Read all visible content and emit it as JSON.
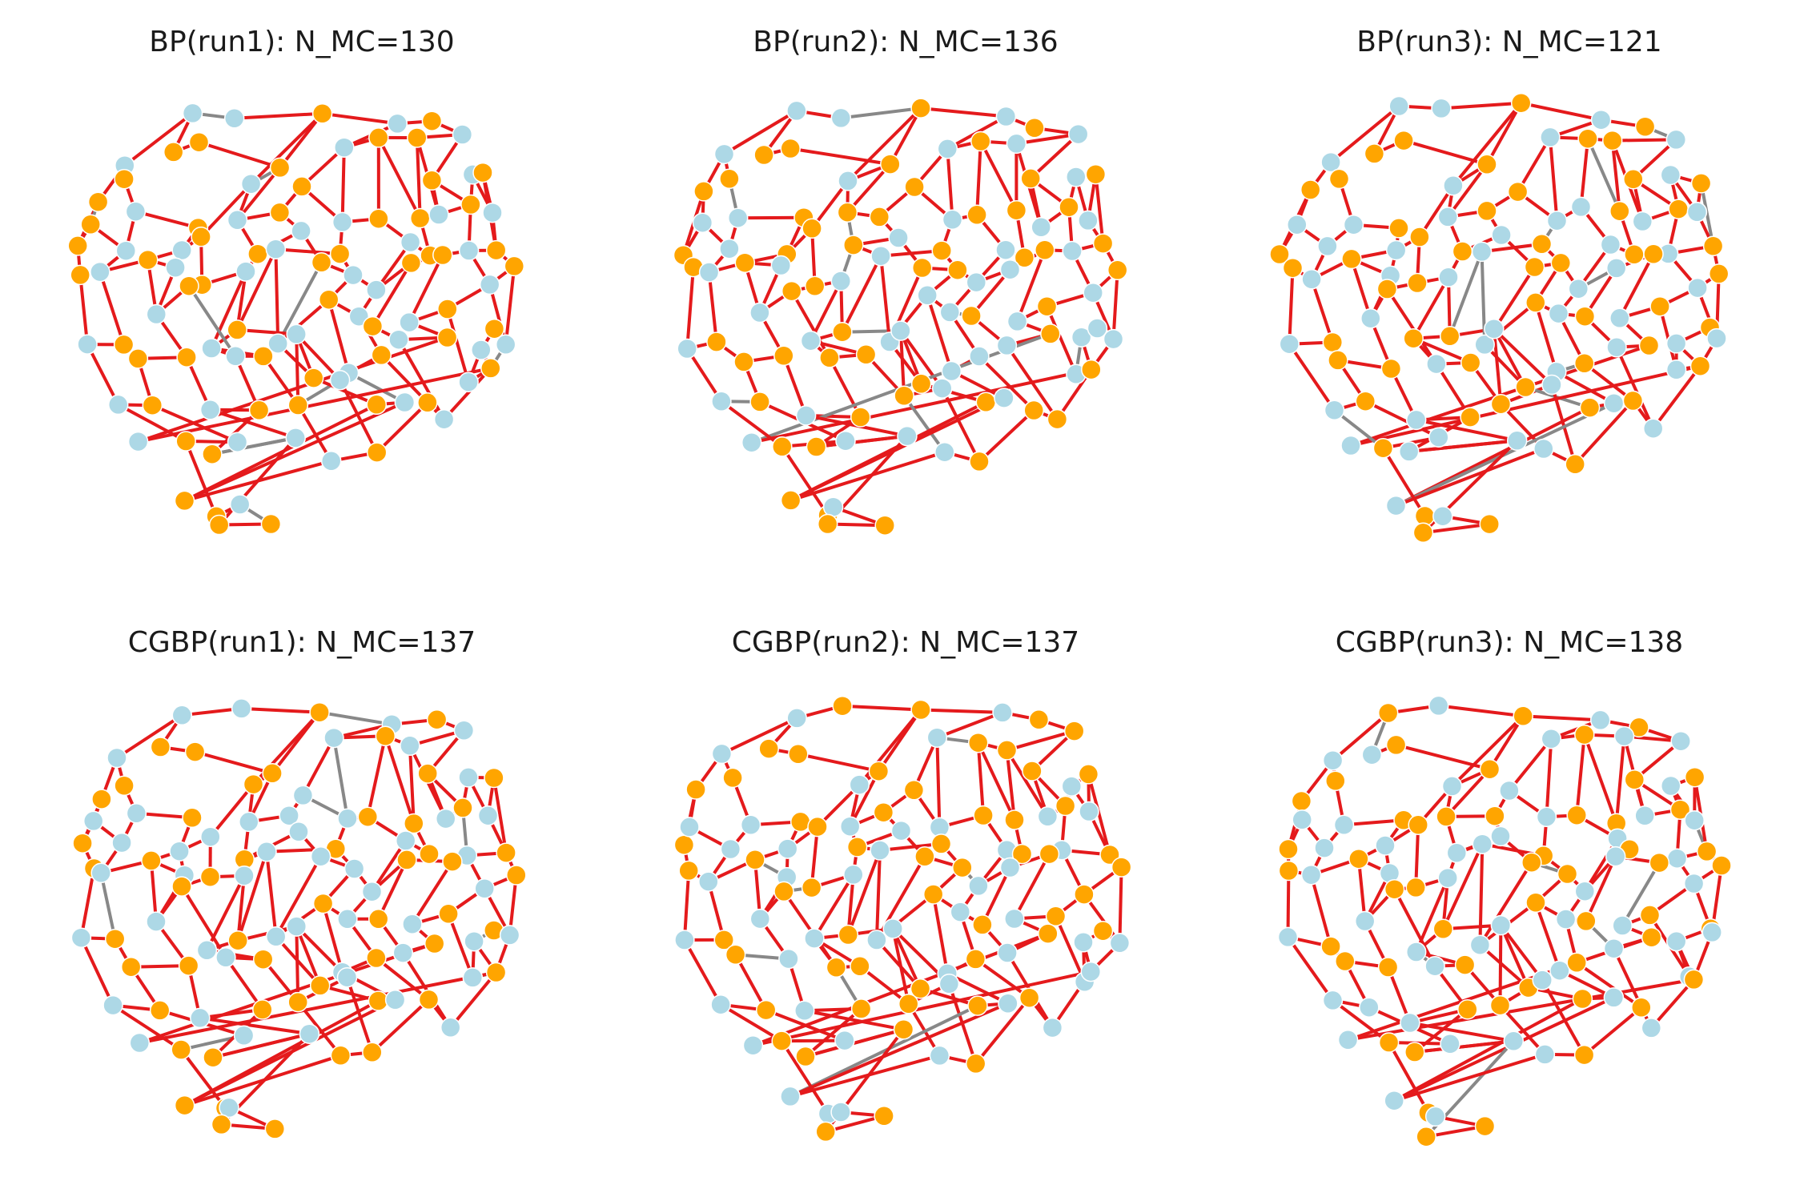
{
  "figure": {
    "panels": [
      {
        "id": "bp-run1",
        "title": "BP(run1): N_MC=130"
      },
      {
        "id": "bp-run2",
        "title": "BP(run2): N_MC=136"
      },
      {
        "id": "bp-run3",
        "title": "BP(run3): N_MC=121"
      },
      {
        "id": "cgbp-run1",
        "title": "CGBP(run1): N_MC=137"
      },
      {
        "id": "cgbp-run2",
        "title": "CGBP(run2): N_MC=137"
      },
      {
        "id": "cgbp-run3",
        "title": "CGBP(run3): N_MC=138"
      }
    ]
  },
  "colors": {
    "node_set_a": "#FFA500",
    "node_set_b": "#ADD8E6",
    "matched_edge": "#E41A1C",
    "unmatched_edge": "#888888",
    "node_outline": "#ffffff"
  }
}
